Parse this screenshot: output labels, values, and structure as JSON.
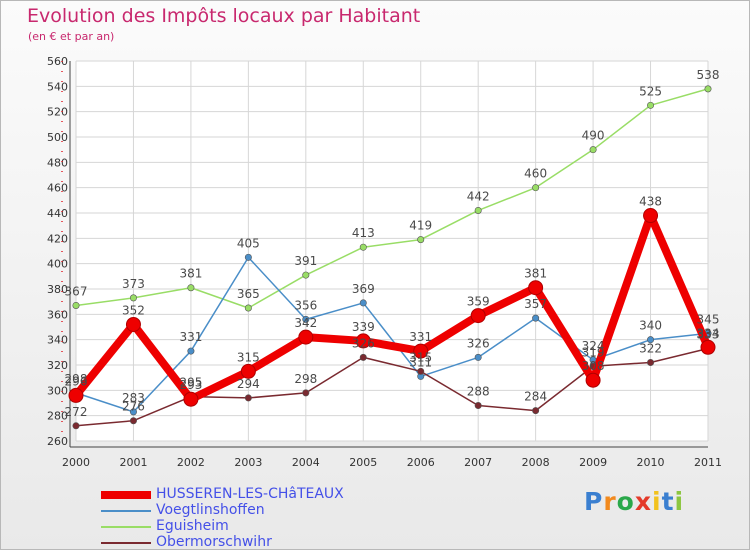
{
  "chart_data": {
    "type": "line",
    "title": "Evolution des Impôts locaux par Habitant",
    "subtitle": "(en € et par an)",
    "x": [
      "2000",
      "2001",
      "2002",
      "2003",
      "2004",
      "2005",
      "2006",
      "2007",
      "2008",
      "2009",
      "2010",
      "2011"
    ],
    "ylim": [
      260,
      560
    ],
    "yticks": [
      260,
      280,
      300,
      320,
      340,
      360,
      380,
      400,
      420,
      440,
      460,
      480,
      500,
      520,
      540,
      560
    ],
    "grid": true,
    "legend_position": "bottom-left",
    "series": [
      {
        "name": "HUSSEREN-LES-CHâTEAUX",
        "color": "#ee0000",
        "values": [
          296,
          352,
          293,
          315,
          342,
          339,
          331,
          359,
          381,
          308,
          438,
          334
        ]
      },
      {
        "name": "Voegtlinshoffen",
        "color": "#4a8ec8",
        "values": [
          298,
          283,
          331,
          405,
          356,
          369,
          311,
          326,
          357,
          324,
          340,
          345
        ]
      },
      {
        "name": "Eguisheim",
        "color": "#99dd66",
        "values": [
          367,
          373,
          381,
          365,
          391,
          413,
          419,
          442,
          460,
          490,
          525,
          538
        ]
      },
      {
        "name": "Obermorschwihr",
        "color": "#7a2a30",
        "values": [
          272,
          276,
          295,
          294,
          298,
          326,
          315,
          288,
          284,
          319,
          322,
          333
        ]
      }
    ]
  },
  "logo": {
    "text": "Proxiti",
    "letters": [
      "P",
      "r",
      "o",
      "x",
      "i",
      "t",
      "i"
    ],
    "colors": [
      "#3a7fd0",
      "#f28a1e",
      "#2aa84a",
      "#e43a2a",
      "#f2c21e",
      "#3a7fd0",
      "#8cc63f"
    ]
  }
}
